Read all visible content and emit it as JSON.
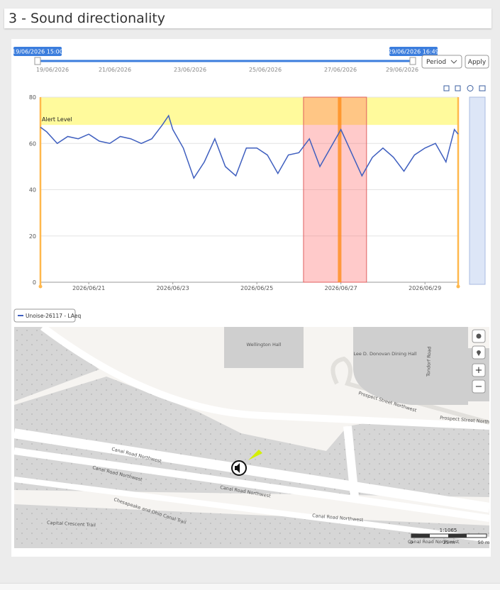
{
  "panel": {
    "title": "3 - Sound directionality"
  },
  "range": {
    "start": "19/06/2026 15:00",
    "end": "29/06/2026 16:49",
    "dates": [
      "19/06/2026",
      "21/06/2026",
      "23/06/2026",
      "25/06/2026",
      "27/06/2026",
      "29/06/2026"
    ],
    "period": "Period",
    "apply": "Apply"
  },
  "chart_data": {
    "type": "line",
    "x": [
      19.85,
      20.0,
      20.25,
      20.5,
      20.75,
      21.0,
      21.25,
      21.5,
      21.75,
      22.0,
      22.25,
      22.5,
      22.75,
      22.9,
      23.0,
      23.25,
      23.5,
      23.75,
      24.0,
      24.25,
      24.5,
      24.75,
      25.0,
      25.25,
      25.5,
      25.75,
      26.0,
      26.25,
      26.5,
      26.75,
      27.0,
      27.25,
      27.5,
      27.75,
      28.0,
      28.25,
      28.5,
      28.75,
      29.0,
      29.25,
      29.5,
      29.7,
      29.79
    ],
    "series": [
      {
        "name": "Unoise-26117 - LAeq",
        "color": "#3f5fbf",
        "values": [
          67,
          65,
          60,
          63,
          62,
          64,
          61,
          60,
          63,
          62,
          60,
          62,
          68,
          72,
          66,
          58,
          45,
          52,
          62,
          50,
          46,
          58,
          58,
          55,
          47,
          55,
          56,
          62,
          50,
          58,
          66,
          56,
          46,
          54,
          58,
          54,
          48,
          55,
          58,
          60,
          52,
          66,
          64
        ]
      }
    ],
    "xlim": [
      19.85,
      29.79
    ],
    "xticks": [
      {
        "value": 21,
        "label": "2026/06/21"
      },
      {
        "value": 23,
        "label": "2026/06/23"
      },
      {
        "value": 25,
        "label": "2026/06/25"
      },
      {
        "value": 27,
        "label": "2026/06/27"
      },
      {
        "value": 29,
        "label": "2026/06/29"
      }
    ],
    "ylim": [
      0,
      80
    ],
    "yticks": [
      0,
      20,
      40,
      60,
      80
    ],
    "grid": true,
    "alert": {
      "label": "Alert Level",
      "value": 68
    },
    "highlight": [
      26.11,
      27.61
    ],
    "marker": 26.97
  },
  "map": {
    "buildings": [
      "Wellington Hall",
      "Lee D. Donovan Dining Hall"
    ],
    "streets": [
      "Canal Road Northwest",
      "Canal Road Northwest",
      "Canal Road Northwest",
      "Canal Road Northwest",
      "Canal Road Northwest",
      "Prospect Street Northwest",
      "Prospect Street Northwest",
      "Tondorf Road",
      "Chesapeake and Ohio Canal Trail",
      "Capital Crescent Trail"
    ],
    "scale": "1:1065",
    "scale_ticks": [
      "0",
      "25 m",
      "50 m"
    ],
    "zoom_in": "+",
    "zoom_out": "−"
  }
}
